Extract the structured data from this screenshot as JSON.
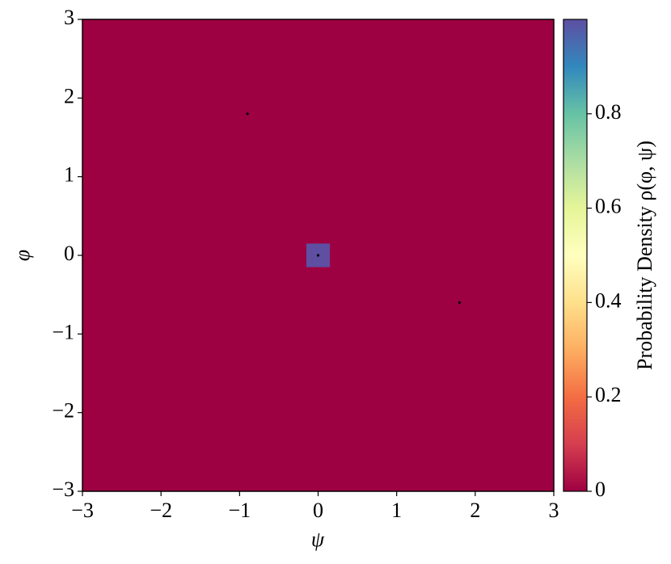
{
  "chart_data": {
    "type": "heatmap",
    "xlabel": "ψ",
    "ylabel": "φ",
    "xlim": [
      -3,
      3
    ],
    "ylim": [
      -3,
      3
    ],
    "xticks": [
      {
        "value": -3,
        "label": "−3"
      },
      {
        "value": -2,
        "label": "−2"
      },
      {
        "value": -1,
        "label": "−1"
      },
      0,
      1,
      2,
      3
    ],
    "yticks": [
      {
        "value": -3,
        "label": "−3"
      },
      {
        "value": -2,
        "label": "−2"
      },
      {
        "value": -1,
        "label": "−1"
      },
      0,
      1,
      2,
      3
    ],
    "colormap": "Spectral",
    "background_value": 0,
    "cell_size": 0.3,
    "cells": {
      "x": [
        0
      ],
      "y": [
        0
      ],
      "values": [
        1
      ]
    },
    "points": {
      "x": [
        -0.9,
        0,
        1.8
      ],
      "y": [
        1.8,
        0,
        -0.6
      ]
    },
    "colorbar": {
      "label": "Probability Density ρ(φ, ψ)",
      "clim": [
        0,
        1
      ],
      "ticks": [
        0,
        0.2,
        0.4,
        0.6,
        0.8
      ]
    }
  }
}
